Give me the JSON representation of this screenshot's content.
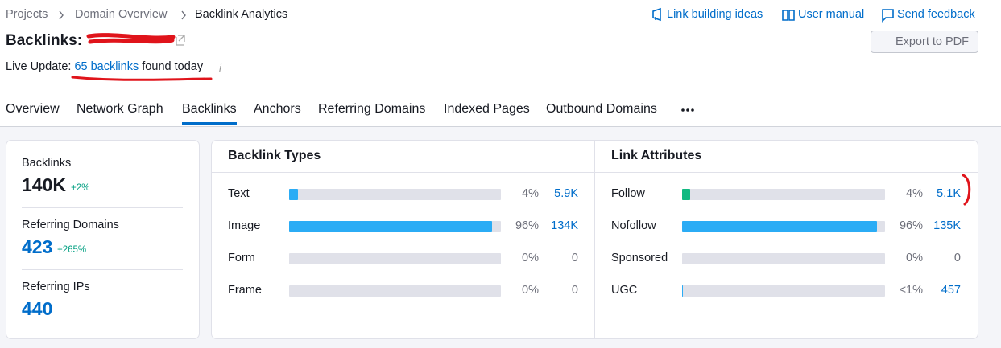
{
  "breadcrumbs": [
    "Projects",
    "Domain Overview",
    "Backlink Analytics"
  ],
  "header_links": [
    "Link building ideas",
    "User manual",
    "Send feedback"
  ],
  "title": "Backlinks:",
  "export_button": "Export to PDF",
  "live_update": {
    "prefix": "Live Update:",
    "link": "65 backlinks",
    "suffix": "found today"
  },
  "tabs": [
    "Overview",
    "Network Graph",
    "Backlinks",
    "Anchors",
    "Referring Domains",
    "Indexed Pages",
    "Outbound Domains"
  ],
  "active_tab_index": 2,
  "summary": [
    {
      "label": "Backlinks",
      "value": "140K",
      "change": "+2%"
    },
    {
      "label": "Referring Domains",
      "value": "423",
      "change": "+265%"
    },
    {
      "label": "Referring IPs",
      "value": "440"
    }
  ],
  "panels": [
    {
      "title": "Backlink Types",
      "rows": [
        {
          "name": "Text",
          "percent": 4,
          "percent_label": "4%",
          "count": "5.9K",
          "color": "#2bacf5"
        },
        {
          "name": "Image",
          "percent": 96,
          "percent_label": "96%",
          "count": "134K",
          "color": "#2bacf5"
        },
        {
          "name": "Form",
          "percent": 0,
          "percent_label": "0%",
          "count": "0",
          "color": "#2bacf5"
        },
        {
          "name": "Frame",
          "percent": 0,
          "percent_label": "0%",
          "count": "0",
          "color": "#2bacf5"
        }
      ]
    },
    {
      "title": "Link Attributes",
      "rows": [
        {
          "name": "Follow",
          "percent": 4,
          "percent_label": "4%",
          "count": "5.1K",
          "color": "#11b981"
        },
        {
          "name": "Nofollow",
          "percent": 96,
          "percent_label": "96%",
          "count": "135K",
          "color": "#2bacf5"
        },
        {
          "name": "Sponsored",
          "percent": 0,
          "percent_label": "0%",
          "count": "0",
          "color": "#2bacf5"
        },
        {
          "name": "UGC",
          "percent": 0.5,
          "percent_label": "<1%",
          "count": "457",
          "color": "#2bacf5"
        }
      ]
    }
  ]
}
